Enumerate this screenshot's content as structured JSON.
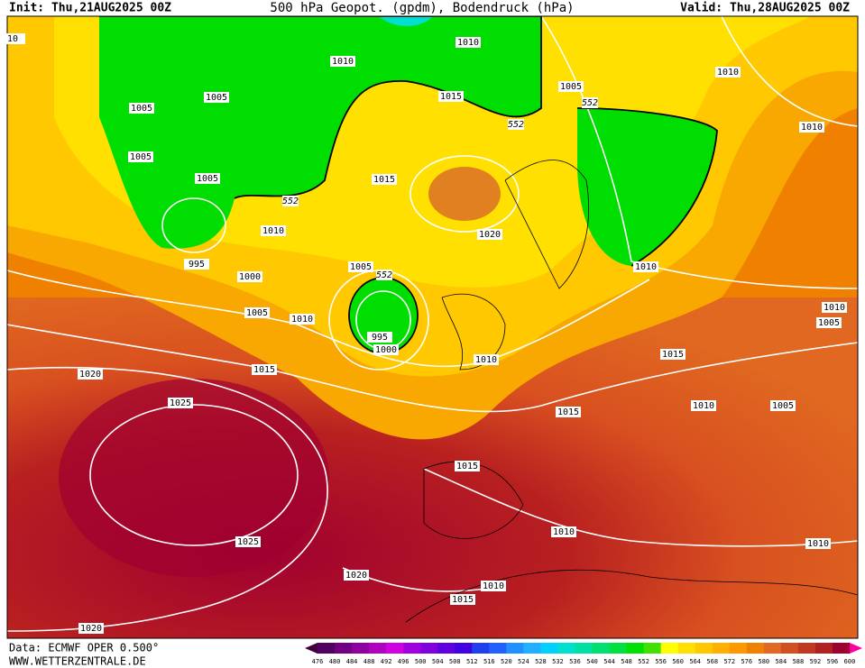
{
  "header": {
    "init": "Init: Thu,21AUG2025 00Z",
    "title": "500 hPa Geopot. (gpdm), Bodendruck (hPa)",
    "valid": "Valid: Thu,28AUG2025 00Z"
  },
  "footer": {
    "source": "Data: ECMWF OPER 0.500°",
    "site": "WWW.WETTERZENTRALE.DE"
  },
  "isobar_labels": [
    10,
    1010,
    1010,
    1005,
    1005,
    1005,
    1005,
    995,
    1000,
    1005,
    1010,
    1015,
    1020,
    1025,
    1025,
    1020,
    1020,
    1015,
    1005,
    1010,
    1010,
    1015,
    1010,
    1020,
    1005,
    995,
    1000,
    1010,
    1015,
    1010,
    1010,
    1005,
    1015,
    1010,
    1005,
    1015,
    1010,
    1010,
    1010,
    1015
  ],
  "geopotential_labels": [
    552,
    552,
    552,
    552
  ],
  "legend": {
    "ticks": [
      476,
      480,
      484,
      488,
      492,
      496,
      500,
      504,
      508,
      512,
      516,
      520,
      524,
      528,
      532,
      536,
      540,
      544,
      548,
      552,
      556,
      560,
      564,
      568,
      572,
      576,
      580,
      584,
      588,
      592,
      596,
      600
    ],
    "colors": [
      "#400040",
      "#500060",
      "#700080",
      "#9000a0",
      "#b000c0",
      "#d000e0",
      "#a000e0",
      "#8000e0",
      "#6000e0",
      "#4000e0",
      "#2040f0",
      "#2060ff",
      "#2090ff",
      "#20b0ff",
      "#00d0ff",
      "#00e0d0",
      "#00e0a0",
      "#00e070",
      "#00e040",
      "#00e000",
      "#40e000",
      "#ffff00",
      "#ffe000",
      "#ffc800",
      "#ffb000",
      "#ff9800",
      "#f08000",
      "#e06820",
      "#d05020",
      "#c03820",
      "#b02020",
      "#a00030",
      "#900040",
      "#ff00a0"
    ]
  }
}
